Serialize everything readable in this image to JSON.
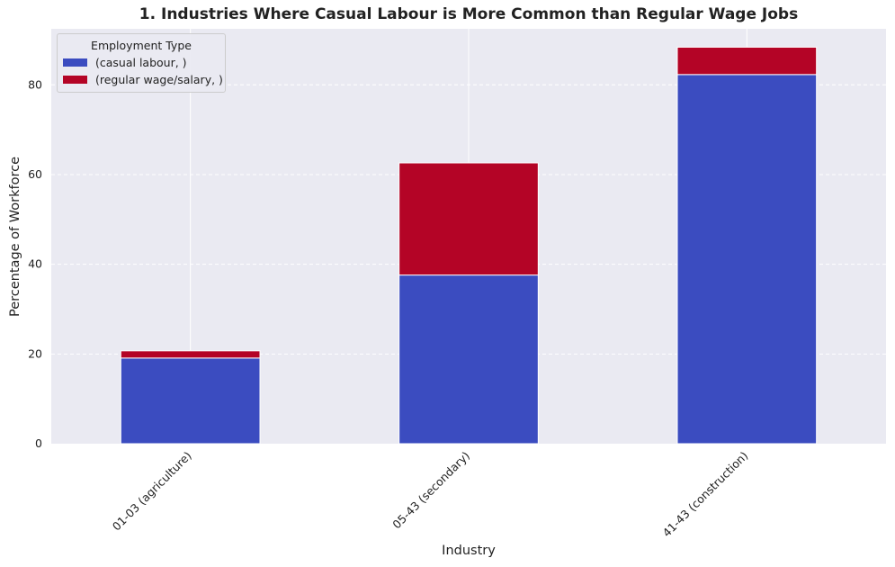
{
  "chart_data": {
    "type": "bar",
    "stacked": true,
    "title": "1. Industries Where Casual Labour is More Common than Regular Wage Jobs",
    "xlabel": "Industry",
    "ylabel": "Percentage of Workforce",
    "categories": [
      "01-03 (agriculture)",
      "05-43 (secondary)",
      "41-43 (construction)"
    ],
    "series": [
      {
        "name": "(casual labour, )",
        "values": [
          19.1,
          37.6,
          82.3
        ],
        "color": "#3b4cc0"
      },
      {
        "name": "(regular wage/salary, )",
        "values": [
          1.6,
          25.0,
          6.1
        ],
        "color": "#b40426"
      }
    ],
    "ylim": [
      0,
      92.5
    ],
    "yticks": [
      0,
      20,
      40,
      60,
      80
    ],
    "grid": true,
    "legend": {
      "title": "Employment Type",
      "placement": "top-left"
    }
  }
}
